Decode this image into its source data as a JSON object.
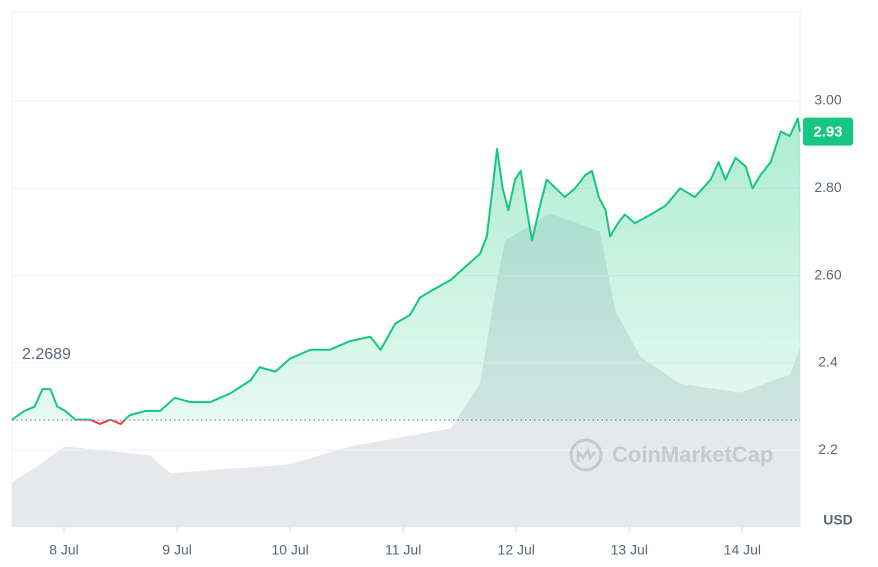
{
  "chart_data": {
    "type": "line",
    "series": [
      {
        "color": "#16c784",
        "below_color": "#ea3943",
        "x": [
          7.54,
          7.65,
          7.74,
          7.81,
          7.88,
          7.94,
          8.01,
          8.1,
          8.23,
          8.32,
          8.41,
          8.5,
          8.58,
          8.72,
          8.85,
          8.98,
          9.12,
          9.29,
          9.47,
          9.65,
          9.73,
          9.87,
          10.0,
          10.18,
          10.35,
          10.53,
          10.71,
          10.8,
          10.93,
          11.06,
          11.15,
          11.28,
          11.42,
          11.55,
          11.68,
          11.74,
          11.8,
          11.83,
          11.88,
          11.93,
          11.99,
          12.04,
          12.1,
          12.14,
          12.21,
          12.27,
          12.35,
          12.43,
          12.52,
          12.61,
          12.67,
          12.73,
          12.79,
          12.83,
          12.9,
          12.96,
          13.05,
          13.19,
          13.32,
          13.45,
          13.58,
          13.72,
          13.79,
          13.85,
          13.94,
          14.03,
          14.09,
          14.16,
          14.25,
          14.34,
          14.42,
          14.49,
          14.51
        ],
        "values": [
          2.27,
          2.29,
          2.3,
          2.34,
          2.34,
          2.3,
          2.29,
          2.27,
          2.27,
          2.26,
          2.27,
          2.26,
          2.28,
          2.29,
          2.29,
          2.32,
          2.31,
          2.31,
          2.33,
          2.36,
          2.39,
          2.38,
          2.41,
          2.43,
          2.43,
          2.45,
          2.46,
          2.43,
          2.49,
          2.51,
          2.55,
          2.57,
          2.59,
          2.62,
          2.65,
          2.69,
          2.82,
          2.89,
          2.8,
          2.75,
          2.82,
          2.84,
          2.74,
          2.68,
          2.76,
          2.82,
          2.8,
          2.78,
          2.8,
          2.83,
          2.84,
          2.78,
          2.75,
          2.69,
          2.72,
          2.74,
          2.72,
          2.74,
          2.76,
          2.8,
          2.78,
          2.82,
          2.86,
          2.82,
          2.87,
          2.85,
          2.8,
          2.83,
          2.86,
          2.93,
          2.92,
          2.96,
          2.93
        ]
      }
    ],
    "volume": {
      "color": "#e6e8ec",
      "x": [
        7.54,
        7.79,
        8.01,
        8.76,
        8.94,
        10.0,
        10.53,
        11.42,
        11.68,
        11.81,
        11.9,
        12.3,
        12.74,
        12.88,
        13.1,
        13.45,
        13.98,
        14.42,
        14.51
      ],
      "values": [
        10,
        14,
        18,
        16,
        12,
        14,
        18,
        22,
        32,
        52,
        64,
        70,
        66,
        48,
        38,
        32,
        30,
        34,
        40
      ],
      "lim": [
        0,
        115
      ]
    },
    "reference": 2.2689,
    "reference_label": "2.2689",
    "current_price": 2.93,
    "current_price_label": "2.93",
    "xlim": [
      7.54,
      14.51
    ],
    "xticks": [
      {
        "value": 8,
        "label": "8 Jul"
      },
      {
        "value": 9,
        "label": "9 Jul"
      },
      {
        "value": 10,
        "label": "10 Jul"
      },
      {
        "value": 11,
        "label": "11 Jul"
      },
      {
        "value": 12,
        "label": "12 Jul"
      },
      {
        "value": 13,
        "label": "13 Jul"
      },
      {
        "value": 14,
        "label": "14 Jul"
      }
    ],
    "ylim": [
      2.024,
      3.204
    ],
    "yticks": [
      {
        "value": 3,
        "label": "3.00"
      },
      {
        "value": 2.8,
        "label": "2.80"
      },
      {
        "value": 2.6,
        "label": "2.60"
      },
      2.4,
      2.2
    ],
    "grid": true,
    "currency": "USD",
    "watermark": "CoinMarketCap"
  }
}
